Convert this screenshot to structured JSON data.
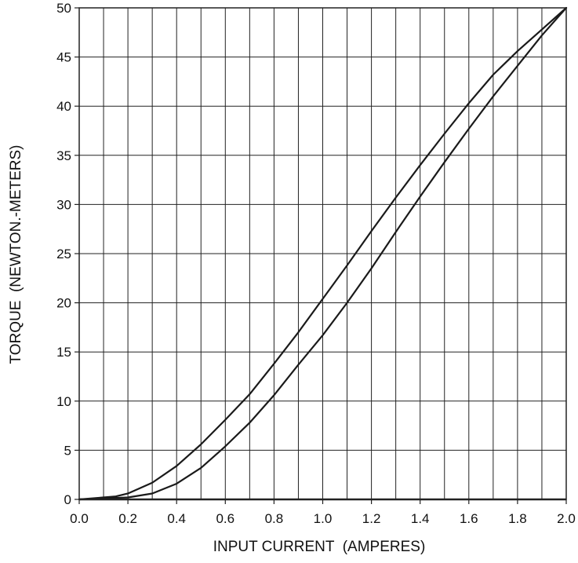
{
  "chart_data": {
    "type": "line",
    "title": "",
    "xlabel": "INPUT CURRENT  (AMPERES)",
    "ylabel": "TORQUE  (NEWTON.-METERS)",
    "xlim": [
      0.0,
      2.0
    ],
    "ylim": [
      0,
      50
    ],
    "grid": true,
    "legend": "none",
    "x_ticks": [
      "0.0",
      "0.2",
      "0.4",
      "0.6",
      "0.8",
      "1.0",
      "1.2",
      "1.4",
      "1.6",
      "1.8",
      "2.0"
    ],
    "x_tick_values": [
      0.0,
      0.2,
      0.4,
      0.6,
      0.8,
      1.0,
      1.2,
      1.4,
      1.6,
      1.8,
      2.0
    ],
    "x_minor_step": 0.1,
    "y_ticks": [
      "0",
      "5",
      "10",
      "15",
      "20",
      "25",
      "30",
      "35",
      "40",
      "45",
      "50"
    ],
    "y_tick_values": [
      0,
      5,
      10,
      15,
      20,
      25,
      30,
      35,
      40,
      45,
      50
    ],
    "colors": {
      "line": "#1a1a1a",
      "grid": "#222222",
      "text": "#111111"
    },
    "series": [
      {
        "x": [
          0.0,
          0.1,
          0.15,
          0.2,
          0.3,
          0.4,
          0.5,
          0.6,
          0.7,
          0.8,
          0.9,
          1.0,
          1.1,
          1.2,
          1.3,
          1.4,
          1.5,
          1.6,
          1.7,
          1.8,
          1.9,
          2.0
        ],
        "y": [
          0,
          0.2,
          0.3,
          0.6,
          1.7,
          3.4,
          5.6,
          8.1,
          10.7,
          13.8,
          17.0,
          20.4,
          23.8,
          27.3,
          30.7,
          34.0,
          37.2,
          40.3,
          43.2,
          45.6,
          47.8,
          50.0
        ]
      },
      {
        "x": [
          0.0,
          0.1,
          0.2,
          0.3,
          0.4,
          0.5,
          0.6,
          0.7,
          0.8,
          0.9,
          1.0,
          1.1,
          1.2,
          1.3,
          1.4,
          1.5,
          1.6,
          1.7,
          1.8,
          1.9,
          2.0
        ],
        "y": [
          0,
          0.1,
          0.2,
          0.6,
          1.6,
          3.2,
          5.4,
          7.8,
          10.6,
          13.7,
          16.7,
          20.0,
          23.5,
          27.2,
          30.8,
          34.3,
          37.7,
          41.0,
          44.1,
          47.2,
          50.0
        ]
      }
    ]
  }
}
